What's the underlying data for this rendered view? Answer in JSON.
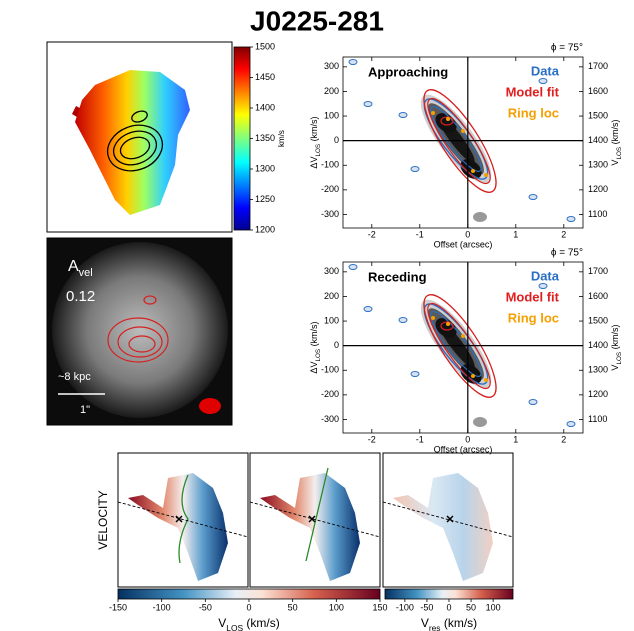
{
  "title": "J0225-281",
  "map_labels": {
    "avel": "A",
    "avel_sub": "vel",
    "avel_value": "0.12",
    "scale_kpc": "~8 kpc",
    "scale_arcsec": "1\"",
    "row_label": "VELOCITY"
  },
  "chart_data": [
    {
      "type": "colorbar",
      "orientation": "vertical",
      "colormap": "jet",
      "label": "km/s",
      "ylim": [
        1200,
        1500
      ],
      "yticks": [
        1200,
        1250,
        1300,
        1350,
        1400,
        1450,
        1500
      ]
    },
    {
      "type": "pv",
      "title": "Approaching",
      "annotation": "ϕ = 75°",
      "legend": [
        {
          "name": "Data",
          "color": "#2a6fc4"
        },
        {
          "name": "Model fit",
          "color": "#e02020"
        },
        {
          "name": "Ring loc",
          "color": "#f5a000"
        }
      ],
      "xlabel": "Offset (arcsec)",
      "ylabel": {
        "prefix": "ΔV",
        "sub": "LOS",
        "suffix": " (km/s)"
      },
      "y2label": {
        "prefix": "V",
        "sub": "LOS",
        "suffix": " (km/s)"
      },
      "xlim": [
        -2.6,
        2.4
      ],
      "xticks": [
        -2,
        -1,
        0,
        1,
        2
      ],
      "ylim": [
        -355,
        340
      ],
      "yticks": [
        -300,
        -200,
        -100,
        0,
        100,
        200,
        300
      ],
      "y2lim": [
        1045,
        1740
      ],
      "y2ticks": [
        1100,
        1200,
        1300,
        1400,
        1500,
        1600,
        1700
      ]
    },
    {
      "type": "pv",
      "title": "Receding",
      "annotation": "ϕ = 75°",
      "legend": [
        {
          "name": "Data",
          "color": "#2a6fc4"
        },
        {
          "name": "Model fit",
          "color": "#e02020"
        },
        {
          "name": "Ring loc",
          "color": "#f5a000"
        }
      ],
      "xlabel": "Offset (arcsec)",
      "ylabel": {
        "prefix": "ΔV",
        "sub": "LOS",
        "suffix": " (km/s)"
      },
      "y2label": {
        "prefix": "V",
        "sub": "LOS",
        "suffix": " (km/s)"
      },
      "xlim": [
        -2.6,
        2.4
      ],
      "xticks": [
        -2,
        -1,
        0,
        1,
        2
      ],
      "ylim": [
        -355,
        340
      ],
      "yticks": [
        -300,
        -200,
        -100,
        0,
        100,
        200,
        300
      ],
      "y2lim": [
        1045,
        1740
      ],
      "y2ticks": [
        1100,
        1200,
        1300,
        1400,
        1500,
        1600,
        1700
      ]
    },
    {
      "type": "colorbar",
      "orientation": "horizontal",
      "colormap": "rdbu",
      "xlabel": {
        "prefix": "V",
        "sub": "LOS",
        "suffix": " (km/s)"
      },
      "xlim": [
        -150,
        150
      ],
      "xticks": [
        -150,
        -100,
        -50,
        0,
        50,
        100,
        150
      ]
    },
    {
      "type": "colorbar",
      "orientation": "horizontal",
      "colormap": "rdbu",
      "xlabel": {
        "prefix": "V",
        "sub": "res",
        "suffix": " (km/s)"
      },
      "xlim": [
        -145,
        145
      ],
      "xticks": [
        -100,
        -50,
        0,
        50,
        100
      ]
    }
  ]
}
